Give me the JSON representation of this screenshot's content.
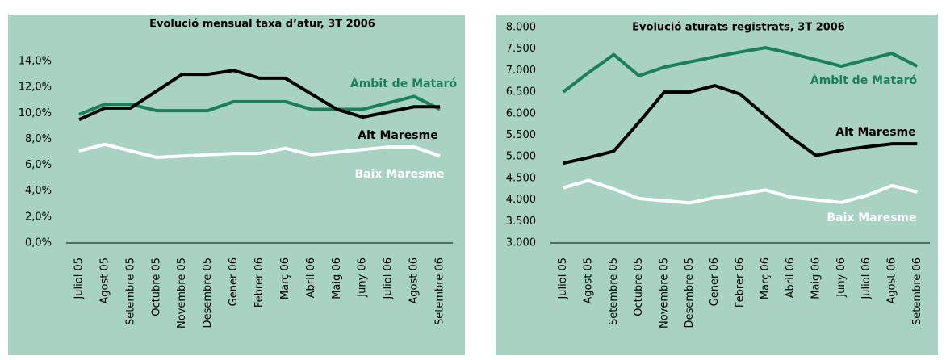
{
  "chart_data": [
    {
      "type": "line",
      "title": "Evolució mensual taxa d’atur, 3T 2006",
      "categories": [
        "Juliol 05",
        "Agost 05",
        "Setembre 05",
        "Octubre 05",
        "Novembre 05",
        "Desembre 05",
        "Gener 06",
        "Febrer 06",
        "Març 06",
        "Abril 06",
        "Maig 06",
        "Juny 06",
        "Juliol 06",
        "Agost 06",
        "Setembre 06"
      ],
      "series": [
        {
          "name": "Àmbit de Mataró",
          "color": "#1a7f5a",
          "values": [
            9.9,
            10.7,
            10.7,
            10.2,
            10.2,
            10.2,
            10.9,
            10.9,
            10.9,
            10.3,
            10.3,
            10.3,
            10.8,
            11.3,
            10.3
          ]
        },
        {
          "name": "Alt Maresme",
          "color": "#000000",
          "values": [
            9.5,
            10.4,
            10.4,
            11.7,
            13.0,
            13.0,
            13.3,
            12.7,
            12.7,
            11.5,
            10.3,
            9.7,
            10.1,
            10.5,
            10.5
          ]
        },
        {
          "name": "Baix Maresme",
          "color": "#ffffff",
          "values": [
            7.1,
            7.6,
            7.1,
            6.6,
            6.7,
            6.8,
            6.9,
            6.9,
            7.3,
            6.8,
            7.0,
            7.2,
            7.4,
            7.4,
            6.7
          ]
        }
      ],
      "ylim": [
        0,
        14
      ],
      "yticks": [
        {
          "value": 0,
          "label": "0,0%"
        },
        {
          "value": 2,
          "label": "2,0%"
        },
        {
          "value": 4,
          "label": "4,0%"
        },
        {
          "value": 6,
          "label": "6,0%"
        },
        {
          "value": 8,
          "label": "8,0%"
        },
        {
          "value": 10,
          "label": "10,0%"
        },
        {
          "value": 12,
          "label": "12,0%"
        },
        {
          "value": 14,
          "label": "14,0%"
        }
      ]
    },
    {
      "type": "line",
      "title": "Evolució aturats registrats, 3T 2006",
      "categories": [
        "Juliol 05",
        "Agost 05",
        "Setembre 05",
        "Octubre 05",
        "Novembre 05",
        "Desembre 05",
        "Gener 06",
        "Febrer 06",
        "Març 06",
        "Abril 06",
        "Maig 06",
        "Juny 06",
        "Juliol 06",
        "Agost 06",
        "Setembre 06"
      ],
      "series": [
        {
          "name": "Àmbit de Mataró",
          "color": "#1a7f5a",
          "values": [
            6500,
            6950,
            7370,
            6880,
            7080,
            7200,
            7320,
            7430,
            7530,
            7400,
            7250,
            7100,
            7250,
            7400,
            7100
          ]
        },
        {
          "name": "Alt Maresme",
          "color": "#000000",
          "values": [
            4850,
            4980,
            5130,
            5800,
            6500,
            6500,
            6650,
            6450,
            5950,
            5450,
            5030,
            5150,
            5230,
            5300,
            5300
          ]
        },
        {
          "name": "Baix Maresme",
          "color": "#ffffff",
          "values": [
            4280,
            4450,
            4250,
            4030,
            3980,
            3930,
            4050,
            4130,
            4230,
            4060,
            4000,
            3940,
            4100,
            4330,
            4180
          ]
        }
      ],
      "ylim": [
        3000,
        8000
      ],
      "yticks": [
        {
          "value": 3000,
          "label": "3.000"
        },
        {
          "value": 3500,
          "label": "3.500"
        },
        {
          "value": 4000,
          "label": "4.000"
        },
        {
          "value": 4500,
          "label": "4.500"
        },
        {
          "value": 5000,
          "label": "5.000"
        },
        {
          "value": 5500,
          "label": "5.500"
        },
        {
          "value": 6000,
          "label": "6.000"
        },
        {
          "value": 6500,
          "label": "6.500"
        },
        {
          "value": 7000,
          "label": "7.000"
        },
        {
          "value": 7500,
          "label": "7.500"
        },
        {
          "value": 8000,
          "label": "8.000"
        }
      ]
    }
  ]
}
